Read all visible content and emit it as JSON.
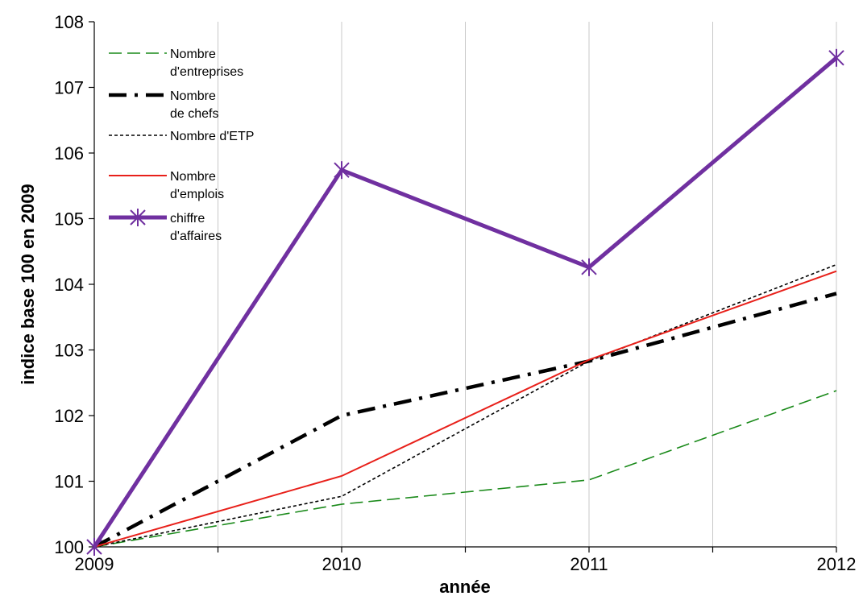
{
  "chart_data": {
    "type": "line",
    "title": "",
    "xlabel": "année",
    "ylabel": "indice base 100 en 2009",
    "x": [
      "2009",
      "2010",
      "2011",
      "2012"
    ],
    "ylim": [
      100,
      108
    ],
    "yticks": [
      "100",
      "101",
      "102",
      "103",
      "104",
      "105",
      "106",
      "107",
      "108"
    ],
    "grid": "vertical",
    "legend_position": "top-left",
    "series": [
      {
        "name": "Nombre d'entreprises",
        "values": [
          100,
          100.65,
          101.02,
          102.38
        ],
        "color": "#1a8a1a",
        "style": "dashed"
      },
      {
        "name": "Nombre de chefs",
        "values": [
          100,
          102.0,
          102.83,
          103.86
        ],
        "color": "#000000",
        "style": "dash-dot"
      },
      {
        "name": "Nombre d'ETP",
        "values": [
          100,
          100.77,
          102.83,
          104.3
        ],
        "color": "#000000",
        "style": "dotted"
      },
      {
        "name": "Nombre d'emplois",
        "values": [
          100,
          101.08,
          102.85,
          104.2
        ],
        "color": "#e8201a",
        "style": "solid"
      },
      {
        "name": "chiffre d'affaires",
        "values": [
          100,
          105.74,
          104.26,
          107.45
        ],
        "color": "#7030a0",
        "style": "thick-star"
      }
    ]
  }
}
